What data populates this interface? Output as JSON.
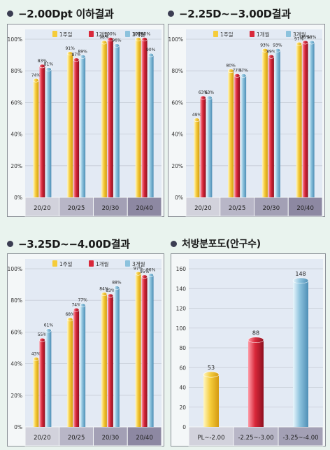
{
  "chart_data": [
    {
      "type": "bar",
      "title": "−2.00Dpt 이하결과",
      "categories": [
        "20/20",
        "20/25",
        "20/30",
        "20/40"
      ],
      "series": [
        {
          "name": "1주일",
          "values": [
            74,
            91,
            98,
            100
          ]
        },
        {
          "name": "1개월",
          "values": [
            83,
            87,
            100,
            100
          ]
        },
        {
          "name": "3개월",
          "values": [
            81,
            89,
            96,
            90
          ]
        }
      ],
      "value_labels": [
        [
          "74%",
          "91%",
          "98%",
          "100%"
        ],
        [
          "83%",
          "87%",
          "100%",
          "100%"
        ],
        [
          "81%",
          "89%",
          "96%",
          "90%"
        ]
      ],
      "ylim": [
        0,
        100
      ],
      "yticks": [
        "0%",
        "20%",
        "40%",
        "60%",
        "80%",
        "100%"
      ],
      "grid": true,
      "legend": "top-right"
    },
    {
      "type": "bar",
      "title": "−2.25D~−3.00D결과",
      "categories": [
        "20/20",
        "20/25",
        "20/30",
        "20/40"
      ],
      "series": [
        {
          "name": "1주일",
          "values": [
            49,
            80,
            93,
            97
          ]
        },
        {
          "name": "1개월",
          "values": [
            63,
            77,
            89,
            98
          ]
        },
        {
          "name": "3개월",
          "values": [
            63,
            77,
            93,
            98
          ]
        }
      ],
      "value_labels": [
        [
          "49%",
          "80%",
          "93%",
          "97%"
        ],
        [
          "63%",
          "77%",
          "89%",
          "98%"
        ],
        [
          "63%",
          "77%",
          "93%",
          "98%"
        ]
      ],
      "ylim": [
        0,
        100
      ],
      "yticks": [
        "0%",
        "20%",
        "40%",
        "60%",
        "80%",
        "100%"
      ],
      "grid": true,
      "legend": "top-right"
    },
    {
      "type": "bar",
      "title": "−3.25D~−4.00D결과",
      "categories": [
        "20/20",
        "20/25",
        "20/30",
        "20/40"
      ],
      "series": [
        {
          "name": "1주일",
          "values": [
            43,
            68,
            84,
            97
          ]
        },
        {
          "name": "1개월",
          "values": [
            55,
            74,
            83,
            95
          ]
        },
        {
          "name": "3개월",
          "values": [
            61,
            77,
            88,
            96
          ]
        }
      ],
      "value_labels": [
        [
          "43%",
          "68%",
          "84%",
          "97%"
        ],
        [
          "55%",
          "74%",
          "83%",
          "95%"
        ],
        [
          "61%",
          "77%",
          "88%",
          "96%"
        ]
      ],
      "ylim": [
        0,
        100
      ],
      "yticks": [
        "0%",
        "20%",
        "40%",
        "60%",
        "80%",
        "100%"
      ],
      "grid": true,
      "legend": "top-right"
    },
    {
      "type": "bar",
      "title": "처방분포도(안구수)",
      "categories": [
        "PL~-2.00",
        "-2.25~-3.00",
        "-3.25~-4.00"
      ],
      "series": [
        {
          "name": "",
          "values": [
            53,
            88,
            148
          ]
        }
      ],
      "value_labels": [
        [
          "53",
          "88",
          "148"
        ]
      ],
      "ylim": [
        0,
        160
      ],
      "yticks": [
        "0",
        "20",
        "40",
        "60",
        "80",
        "100",
        "120",
        "140",
        "160"
      ],
      "grid": true
    }
  ],
  "colors": {
    "week1": "#f5cc3a",
    "month1": "#d9283a",
    "month3": "#8cc2dd",
    "plot_bg": "#e3eaf4",
    "bullet": "#3b3d52"
  }
}
